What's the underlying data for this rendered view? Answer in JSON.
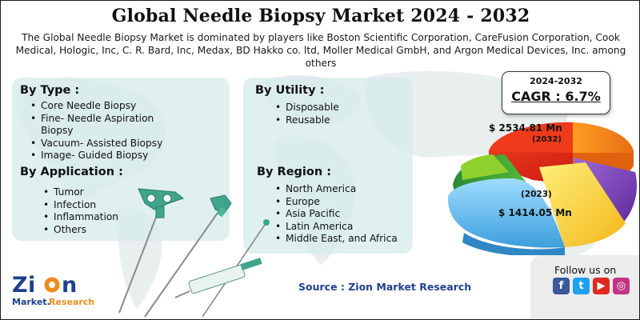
{
  "header": {
    "title": "Global Needle Biopsy Market 2024 - 2032",
    "subtitle": "The Global Needle Biopsy Market is dominated by players like Boston Scientific Corporation, CareFusion Corporation, Cook Medical, Hologic, Inc, C. R. Bard, Inc, Medax, BD Hakko co. ltd, Moller Medical GmbH, and Argon Medical Devices, Inc. among others"
  },
  "segments": {
    "by_type": {
      "title": "By Type  :",
      "items": [
        "Core Needle Biopsy",
        "Fine- Needle Aspiration",
        "Biopsy",
        "Vacuum- Assisted Biopsy",
        "Image- Guided Biopsy"
      ]
    },
    "by_application": {
      "title": "By Application :",
      "items": [
        "Tumor",
        "Infection",
        "Inflammation",
        "Others"
      ]
    },
    "by_utility": {
      "title": "By Utility :",
      "items": [
        "Disposable",
        "Reusable"
      ]
    },
    "by_region": {
      "title": "By Region :",
      "items": [
        "North America",
        "Europe",
        "Asia Pacific",
        "Latin America",
        "Middle East, and Africa"
      ]
    }
  },
  "cagr": {
    "period": "2024-2032",
    "value": "CAGR : 6.7%"
  },
  "pie": {
    "value_2032": "$ 2534.81 Mn",
    "year_2032": "(2032)",
    "year_2023": "(2023)",
    "value_2023": "$ 1414.05 Mn",
    "colors": [
      "#e8261b",
      "#f08a1c",
      "#ffd21f",
      "#7b3db8",
      "#5fb8f0",
      "#2e9a3c",
      "#8fd12e"
    ]
  },
  "footer": {
    "source": "Source : Zion Market Research",
    "follow": "Follow us on",
    "logo_word": "Zion",
    "logo_sub": "Market.Research",
    "social_icons": [
      "facebook-icon",
      "twitter-icon",
      "youtube-icon",
      "instagram-icon"
    ]
  }
}
